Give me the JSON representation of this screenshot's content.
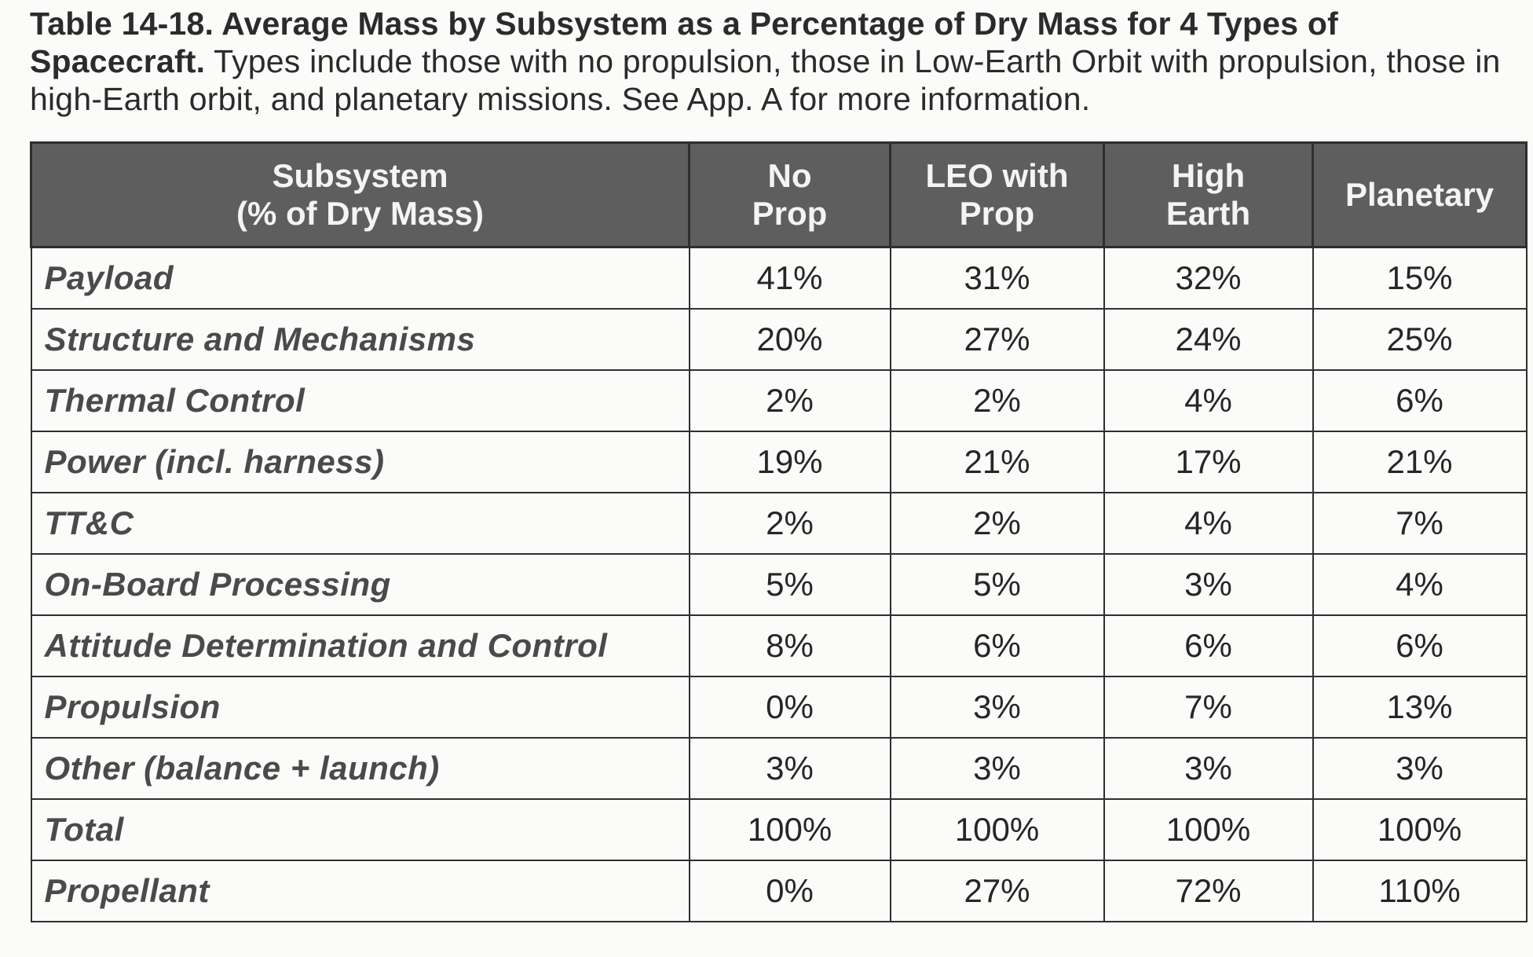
{
  "caption": {
    "lead": "Table 14-18. Average Mass by Subsystem as a Percentage of Dry Mass for 4 Types of Spacecraft.",
    "body": " Types include those with no propulsion, those in Low-Earth Orbit with propulsion, those in high-Earth orbit, and planetary missions. See App. A for more information."
  },
  "table": {
    "headers": [
      [
        "Subsystem",
        "(% of Dry Mass)"
      ],
      [
        "No",
        "Prop"
      ],
      [
        "LEO with",
        "Prop"
      ],
      [
        "High",
        "Earth"
      ],
      [
        "Planetary"
      ]
    ],
    "rows": [
      [
        "Payload",
        "41%",
        "31%",
        "32%",
        "15%"
      ],
      [
        "Structure and Mechanisms",
        "20%",
        "27%",
        "24%",
        "25%"
      ],
      [
        "Thermal Control",
        "2%",
        "2%",
        "4%",
        "6%"
      ],
      [
        "Power (incl. harness)",
        "19%",
        "21%",
        "17%",
        "21%"
      ],
      [
        "TT&C",
        "2%",
        "2%",
        "4%",
        "7%"
      ],
      [
        "On-Board Processing",
        "5%",
        "5%",
        "3%",
        "4%"
      ],
      [
        "Attitude Determination and Control",
        "8%",
        "6%",
        "6%",
        "6%"
      ],
      [
        "Propulsion",
        "0%",
        "3%",
        "7%",
        "13%"
      ],
      [
        "Other (balance + launch)",
        "3%",
        "3%",
        "3%",
        "3%"
      ],
      [
        "Total",
        "100%",
        "100%",
        "100%",
        "100%"
      ],
      [
        "Propellant",
        "0%",
        "27%",
        "72%",
        "110%"
      ]
    ]
  }
}
